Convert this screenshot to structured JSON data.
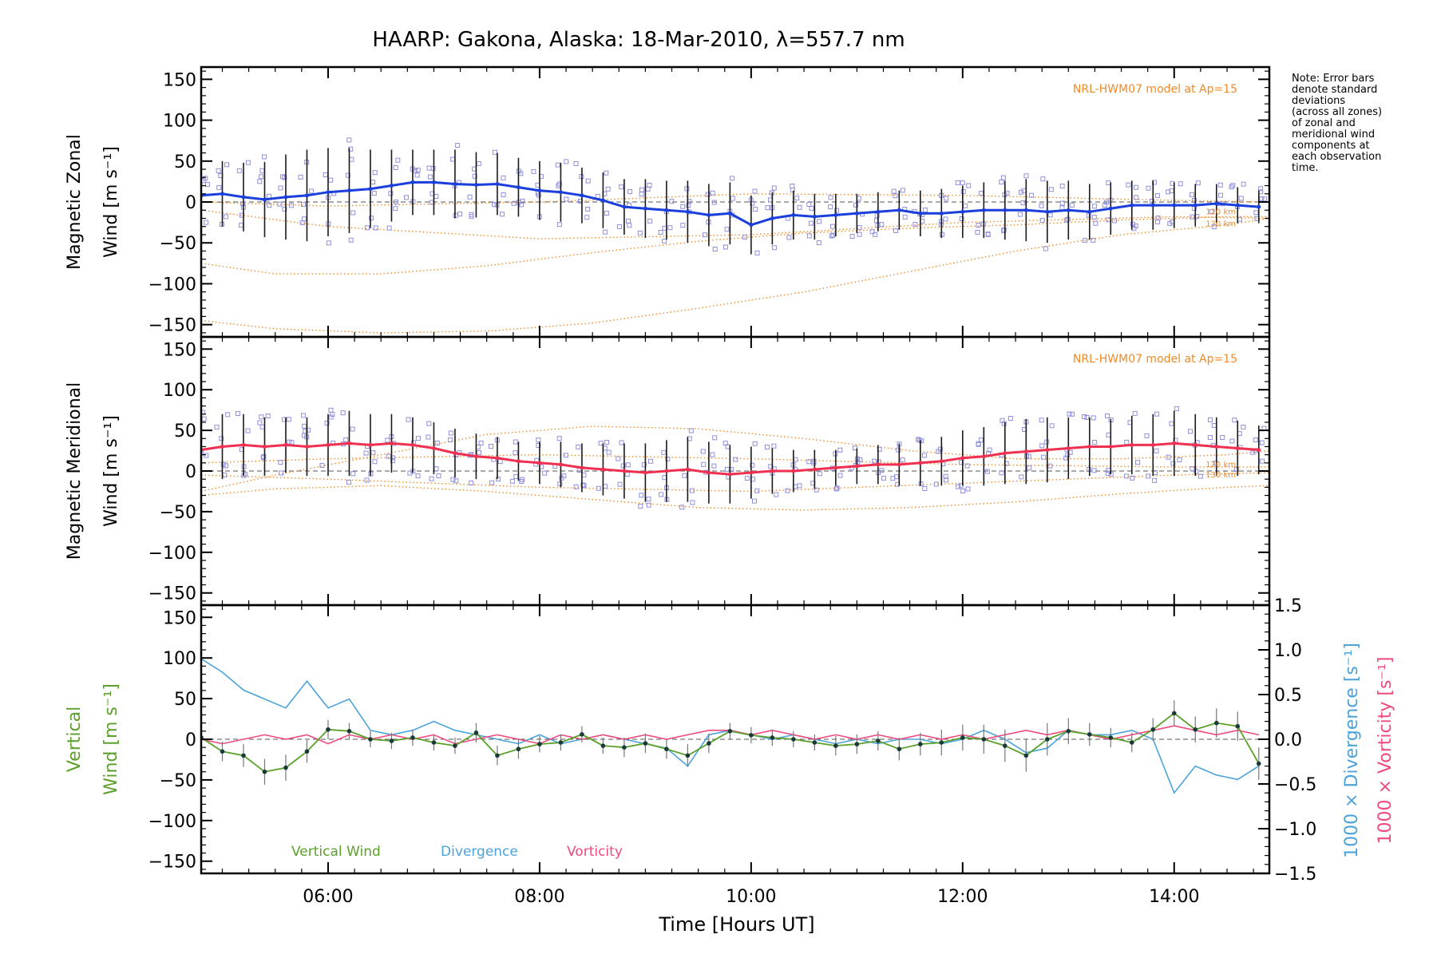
{
  "figure": {
    "title": "HAARP: Gakona,  Alaska: 18-Mar-2010, λ=557.7 nm",
    "note_lines": [
      "Note: Error bars",
      "denote standard",
      "deviations",
      "(across all zones)",
      "of zonal and",
      "meridional wind",
      "components at",
      "each observation",
      "time."
    ],
    "xlabel": "Time [Hours UT]",
    "colors": {
      "zonal": "#1a3fdc",
      "meridional": "#f03050",
      "model": "#f08a28",
      "scatter": "#8f8fdd",
      "vertical": "#5aa02a",
      "divergence": "#4ba3d9",
      "vorticity": "#ee4a7e",
      "errorbar": "#1a1a1a"
    }
  },
  "chart_data": [
    {
      "type": "line",
      "panel": "zonal",
      "ylabel_1": "Magnetic Zonal",
      "ylabel_2": "Wind [m s⁻¹]",
      "model_label": "NRL-HWM07 model at Ap=15",
      "model_alt_labels": [
        "120 km",
        "130 km"
      ],
      "xlim": [
        4.8,
        14.9
      ],
      "ylim": [
        -165,
        165
      ],
      "xticks": [
        6,
        8,
        10,
        12,
        14
      ],
      "xtick_labels": [
        "06:00",
        "08:00",
        "10:00",
        "12:00",
        "14:00"
      ],
      "yticks": [
        -150,
        -100,
        -50,
        0,
        50,
        100,
        150
      ],
      "ytick_labels": [
        "−150",
        "−100",
        "−50",
        "0",
        "50",
        "100",
        "150"
      ],
      "grid": false,
      "series": [
        {
          "role": "mean",
          "x": [
            4.8,
            5.0,
            5.2,
            5.4,
            5.6,
            5.8,
            6.0,
            6.2,
            6.4,
            6.6,
            6.8,
            7.0,
            7.2,
            7.4,
            7.6,
            7.8,
            8.0,
            8.2,
            8.4,
            8.6,
            8.8,
            9.0,
            9.2,
            9.4,
            9.6,
            9.8,
            10.0,
            10.2,
            10.4,
            10.6,
            10.8,
            11.0,
            11.2,
            11.4,
            11.6,
            11.8,
            12.0,
            12.2,
            12.4,
            12.6,
            12.8,
            13.0,
            13.2,
            13.4,
            13.6,
            13.8,
            14.0,
            14.2,
            14.4,
            14.6,
            14.8
          ],
          "y": [
            8,
            10,
            6,
            3,
            6,
            8,
            12,
            14,
            16,
            20,
            24,
            24,
            22,
            21,
            22,
            18,
            14,
            12,
            8,
            2,
            -6,
            -8,
            -10,
            -12,
            -16,
            -14,
            -28,
            -20,
            -16,
            -18,
            -16,
            -14,
            -12,
            -10,
            -14,
            -14,
            -12,
            -10,
            -10,
            -10,
            -12,
            -10,
            -12,
            -8,
            -4,
            -4,
            -4,
            -4,
            -2,
            -4,
            -6
          ],
          "error": [
            42,
            40,
            42,
            46,
            52,
            56,
            54,
            52,
            48,
            44,
            40,
            40,
            42,
            40,
            38,
            36,
            36,
            36,
            34,
            34,
            34,
            36,
            36,
            38,
            38,
            38,
            36,
            32,
            30,
            28,
            26,
            24,
            24,
            24,
            28,
            30,
            32,
            34,
            36,
            38,
            38,
            36,
            34,
            32,
            30,
            30,
            28,
            26,
            24,
            22,
            20
          ]
        },
        {
          "role": "model_120km",
          "x": [
            4.8,
            6.0,
            8.0,
            10.0,
            12.0,
            14.0,
            14.9
          ],
          "y": [
            0,
            -5,
            0,
            10,
            8,
            2,
            0
          ]
        },
        {
          "role": "model_130km",
          "x": [
            4.8,
            6.0,
            8.0,
            10.0,
            12.0,
            14.0,
            14.9
          ],
          "y": [
            -10,
            -30,
            -45,
            -40,
            -25,
            -18,
            -20
          ]
        },
        {
          "role": "model_low",
          "x": [
            4.8,
            5.5,
            6.5,
            7.5,
            8.5,
            9.5,
            10.5,
            11.5,
            12.5,
            13.5,
            14.5,
            14.9
          ],
          "y": [
            -75,
            -88,
            -88,
            -78,
            -62,
            -48,
            -38,
            -32,
            -28,
            -22,
            -18,
            -18
          ]
        },
        {
          "role": "model_bottom",
          "x": [
            4.8,
            5.5,
            6.5,
            7.5,
            8.5,
            9.5,
            10.5,
            11.5,
            12.5,
            13.5,
            14.5,
            14.9
          ],
          "y": [
            -145,
            -155,
            -160,
            -158,
            -148,
            -130,
            -110,
            -85,
            -60,
            -40,
            -28,
            -20
          ]
        }
      ]
    },
    {
      "type": "line",
      "panel": "meridional",
      "ylabel_1": "Magnetic Meridional",
      "ylabel_2": "Wind [m s⁻¹]",
      "model_label": "NRL-HWM07 model at Ap=15",
      "model_alt_labels": [
        "120 km",
        "130 km"
      ],
      "xlim": [
        4.8,
        14.9
      ],
      "ylim": [
        -165,
        165
      ],
      "yticks": [
        -150,
        -100,
        -50,
        0,
        50,
        100,
        150
      ],
      "ytick_labels": [
        "−150",
        "−100",
        "−50",
        "0",
        "50",
        "100",
        "150"
      ],
      "grid": false,
      "series": [
        {
          "role": "mean",
          "x": [
            4.8,
            5.0,
            5.2,
            5.4,
            5.6,
            5.8,
            6.0,
            6.2,
            6.4,
            6.6,
            6.8,
            7.0,
            7.2,
            7.4,
            7.6,
            7.8,
            8.0,
            8.2,
            8.4,
            8.6,
            8.8,
            9.0,
            9.2,
            9.4,
            9.6,
            9.8,
            10.0,
            10.2,
            10.4,
            10.6,
            10.8,
            11.0,
            11.2,
            11.4,
            11.6,
            11.8,
            12.0,
            12.2,
            12.4,
            12.6,
            12.8,
            13.0,
            13.2,
            13.4,
            13.6,
            13.8,
            14.0,
            14.2,
            14.4,
            14.6,
            14.8
          ],
          "y": [
            26,
            30,
            32,
            30,
            32,
            30,
            32,
            34,
            32,
            34,
            32,
            28,
            22,
            18,
            16,
            12,
            10,
            8,
            4,
            2,
            0,
            -2,
            0,
            2,
            -2,
            -4,
            -2,
            0,
            0,
            2,
            4,
            6,
            8,
            8,
            10,
            12,
            16,
            18,
            22,
            24,
            26,
            28,
            30,
            30,
            32,
            32,
            34,
            32,
            30,
            28,
            26
          ],
          "error": [
            40,
            40,
            38,
            36,
            34,
            36,
            38,
            40,
            38,
            36,
            34,
            32,
            30,
            28,
            26,
            24,
            26,
            28,
            30,
            32,
            34,
            36,
            38,
            40,
            38,
            36,
            32,
            28,
            26,
            24,
            22,
            22,
            24,
            26,
            28,
            30,
            34,
            36,
            38,
            40,
            40,
            38,
            36,
            34,
            36,
            38,
            40,
            38,
            36,
            34,
            30
          ]
        },
        {
          "role": "model_120km",
          "x": [
            4.8,
            6.0,
            8.0,
            10.0,
            12.0,
            14.0,
            14.9
          ],
          "y": [
            10,
            15,
            20,
            15,
            8,
            5,
            5
          ]
        },
        {
          "role": "model_130km",
          "x": [
            4.8,
            6.0,
            8.0,
            10.0,
            12.0,
            14.0,
            14.9
          ],
          "y": [
            -5,
            -10,
            -20,
            -25,
            -15,
            -5,
            -2
          ]
        },
        {
          "role": "model_upper",
          "x": [
            4.8,
            5.5,
            6.5,
            7.5,
            8.5,
            9.5,
            10.5,
            11.5,
            12.5,
            13.5,
            14.5,
            14.9
          ],
          "y": [
            -25,
            -5,
            20,
            45,
            55,
            52,
            40,
            25,
            15,
            15,
            20,
            25
          ]
        },
        {
          "role": "model_lower",
          "x": [
            4.8,
            5.5,
            6.5,
            7.5,
            8.5,
            9.5,
            10.5,
            11.5,
            12.5,
            13.5,
            14.5,
            14.9
          ],
          "y": [
            -30,
            -22,
            -18,
            -25,
            -35,
            -45,
            -48,
            -45,
            -38,
            -28,
            -20,
            -18
          ]
        }
      ]
    },
    {
      "type": "line",
      "panel": "vertical",
      "ylabel_1": "Vertical",
      "ylabel_2": "Wind [m s⁻¹]",
      "right_ylabel_1": "1000 × Divergence [s⁻¹]",
      "right_ylabel_2": "1000 × Vorticity [s⁻¹]",
      "xlim": [
        4.8,
        14.9
      ],
      "ylim": [
        -165,
        165
      ],
      "yticks": [
        -150,
        -100,
        -50,
        0,
        50,
        100,
        150
      ],
      "ytick_labels": [
        "−150",
        "−100",
        "−50",
        "0",
        "50",
        "100",
        "150"
      ],
      "y2lim": [
        -1.5,
        1.5
      ],
      "y2ticks": [
        -1.5,
        -1.0,
        -0.5,
        0.0,
        0.5,
        1.0,
        1.5
      ],
      "y2tick_labels": [
        "−1.5",
        "−1.0",
        "−0.5",
        "0.0",
        "0.5",
        "1.0",
        "1.5"
      ],
      "legend": [
        "Vertical Wind",
        "Divergence",
        "Vorticity"
      ],
      "legend_position": "bottom-left",
      "grid": false,
      "series": [
        {
          "name": "Vertical Wind",
          "axis": "left",
          "x": [
            4.8,
            5.0,
            5.2,
            5.4,
            5.6,
            5.8,
            6.0,
            6.2,
            6.4,
            6.6,
            6.8,
            7.0,
            7.2,
            7.4,
            7.6,
            7.8,
            8.0,
            8.2,
            8.4,
            8.6,
            8.8,
            9.0,
            9.2,
            9.4,
            9.6,
            9.8,
            10.0,
            10.2,
            10.4,
            10.6,
            10.8,
            11.0,
            11.2,
            11.4,
            11.6,
            11.8,
            12.0,
            12.2,
            12.4,
            12.6,
            12.8,
            13.0,
            13.2,
            13.4,
            13.6,
            13.8,
            14.0,
            14.2,
            14.4,
            14.6,
            14.8
          ],
          "y": [
            2,
            -15,
            -20,
            -40,
            -35,
            -15,
            12,
            10,
            0,
            -2,
            2,
            -4,
            -8,
            8,
            -20,
            -12,
            -6,
            -4,
            6,
            -8,
            -10,
            -5,
            -12,
            -20,
            -5,
            10,
            5,
            2,
            0,
            -4,
            -8,
            -6,
            -2,
            -12,
            -6,
            -4,
            2,
            0,
            -8,
            -20,
            0,
            10,
            6,
            2,
            -4,
            12,
            32,
            12,
            20,
            16,
            -30
          ],
          "error": [
            10,
            12,
            14,
            16,
            16,
            14,
            12,
            10,
            10,
            10,
            10,
            10,
            10,
            12,
            12,
            12,
            10,
            10,
            10,
            10,
            12,
            12,
            12,
            14,
            12,
            10,
            10,
            10,
            10,
            10,
            12,
            12,
            12,
            14,
            14,
            16,
            16,
            18,
            20,
            20,
            20,
            16,
            14,
            12,
            12,
            14,
            16,
            16,
            18,
            18,
            20
          ]
        },
        {
          "name": "Divergence",
          "axis": "right",
          "x": [
            4.8,
            5.0,
            5.2,
            5.4,
            5.6,
            5.8,
            6.0,
            6.2,
            6.4,
            6.6,
            6.8,
            7.0,
            7.2,
            7.4,
            7.6,
            7.8,
            8.0,
            8.2,
            8.4,
            8.6,
            8.8,
            9.0,
            9.2,
            9.4,
            9.6,
            9.8,
            10.0,
            10.2,
            10.4,
            10.6,
            10.8,
            11.0,
            11.2,
            11.4,
            11.6,
            11.8,
            12.0,
            12.2,
            12.4,
            12.6,
            12.8,
            13.0,
            13.2,
            13.4,
            13.6,
            13.8,
            14.0,
            14.2,
            14.4,
            14.6,
            14.8
          ],
          "y": [
            0.9,
            0.75,
            0.55,
            0.45,
            0.35,
            0.65,
            0.35,
            0.45,
            0.1,
            0.05,
            0.1,
            0.2,
            0.1,
            0.05,
            0.0,
            -0.05,
            0.05,
            -0.05,
            0.0,
            0.05,
            0.0,
            -0.05,
            -0.1,
            -0.3,
            0.05,
            0.1,
            0.05,
            0.0,
            0.05,
            0.0,
            -0.05,
            0.0,
            -0.05,
            0.0,
            0.0,
            -0.05,
            0.0,
            0.1,
            0.0,
            -0.15,
            -0.1,
            0.1,
            0.05,
            0.05,
            0.1,
            0.0,
            -0.6,
            -0.3,
            -0.4,
            -0.45,
            -0.3
          ]
        },
        {
          "name": "Vorticity",
          "axis": "right",
          "x": [
            4.8,
            5.0,
            5.2,
            5.4,
            5.6,
            5.8,
            6.0,
            6.2,
            6.4,
            6.6,
            6.8,
            7.0,
            7.2,
            7.4,
            7.6,
            7.8,
            8.0,
            8.2,
            8.4,
            8.6,
            8.8,
            9.0,
            9.2,
            9.4,
            9.6,
            9.8,
            10.0,
            10.2,
            10.4,
            10.6,
            10.8,
            11.0,
            11.2,
            11.4,
            11.6,
            11.8,
            12.0,
            12.2,
            12.4,
            12.6,
            12.8,
            13.0,
            13.2,
            13.4,
            13.6,
            13.8,
            14.0,
            14.2,
            14.4,
            14.6,
            14.8
          ],
          "y": [
            0.0,
            -0.05,
            0.0,
            0.05,
            0.0,
            0.05,
            -0.05,
            0.05,
            0.0,
            0.05,
            0.0,
            0.05,
            -0.05,
            0.0,
            0.05,
            0.0,
            -0.05,
            0.05,
            0.0,
            0.05,
            0.0,
            0.05,
            0.0,
            0.05,
            0.1,
            0.1,
            0.05,
            0.1,
            0.05,
            0.0,
            0.05,
            0.0,
            0.05,
            0.0,
            0.05,
            0.0,
            0.05,
            0.0,
            0.05,
            0.1,
            0.05,
            0.1,
            0.05,
            0.0,
            0.05,
            0.1,
            0.15,
            0.1,
            0.05,
            0.1,
            0.05
          ]
        }
      ]
    }
  ]
}
